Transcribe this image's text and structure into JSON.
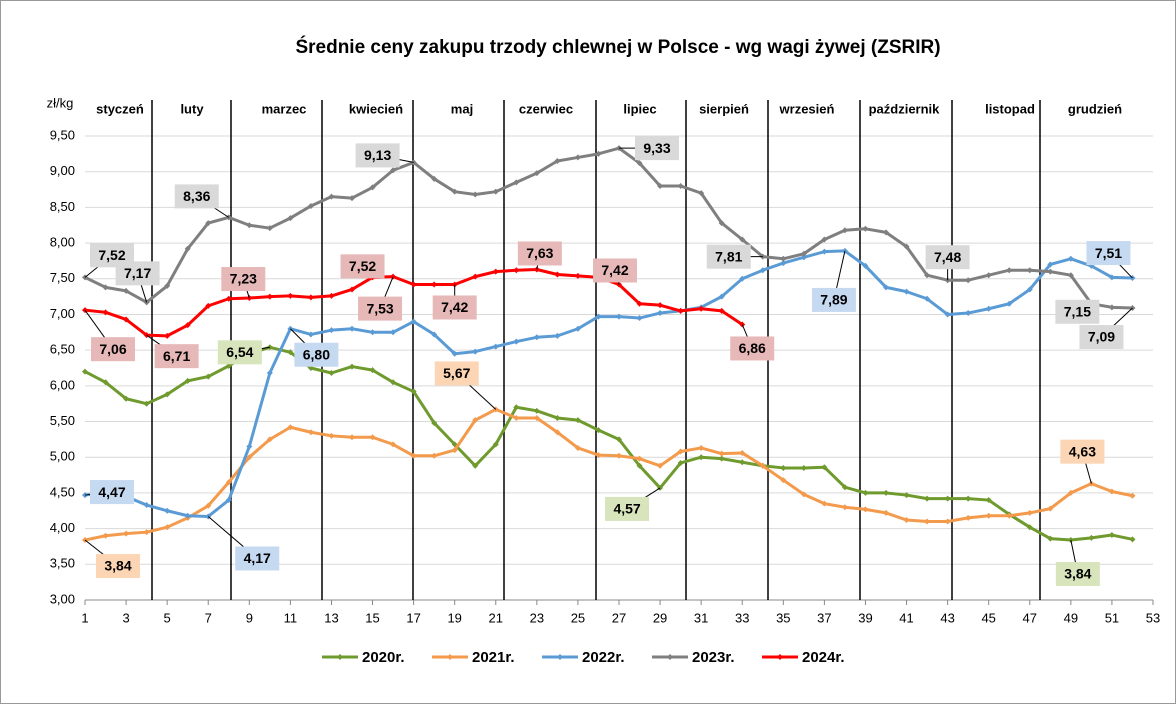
{
  "chart_data": {
    "type": "line",
    "title": "Średnie ceny zakupu trzody chlewnej w Polsce - wg wagi żywej (ZSRIR)",
    "y_label": "zł/kg",
    "months": [
      "styczeń",
      "luty",
      "marzec",
      "kwiecień",
      "maj",
      "czerwiec",
      "lipiec",
      "sierpień",
      "wrzesień",
      "październik",
      "listopad",
      "grudzień"
    ],
    "x": [
      1,
      2,
      3,
      4,
      5,
      6,
      7,
      8,
      9,
      10,
      11,
      12,
      13,
      14,
      15,
      16,
      17,
      18,
      19,
      20,
      21,
      22,
      23,
      24,
      25,
      26,
      27,
      28,
      29,
      30,
      31,
      32,
      33,
      34,
      35,
      36,
      37,
      38,
      39,
      40,
      41,
      42,
      43,
      44,
      45,
      46,
      47,
      48,
      49,
      50,
      51,
      52
    ],
    "xlim": [
      1,
      53
    ],
    "xticks": [
      1,
      3,
      5,
      7,
      9,
      11,
      13,
      15,
      17,
      19,
      21,
      23,
      25,
      27,
      29,
      31,
      33,
      35,
      37,
      39,
      41,
      43,
      45,
      47,
      49,
      51,
      53
    ],
    "ylim": [
      3,
      9.5
    ],
    "yticks": [
      {
        "value": 3,
        "label": "3,00"
      },
      {
        "value": 3.5,
        "label": "3,50"
      },
      {
        "value": 4,
        "label": "4,00"
      },
      {
        "value": 4.5,
        "label": "4,50"
      },
      {
        "value": 5,
        "label": "5,00"
      },
      {
        "value": 5.5,
        "label": "5,50"
      },
      {
        "value": 6,
        "label": "6,00"
      },
      {
        "value": 6.5,
        "label": "6,50"
      },
      {
        "value": 7,
        "label": "7,00"
      },
      {
        "value": 7.5,
        "label": "7,50"
      },
      {
        "value": 8,
        "label": "8,00"
      },
      {
        "value": 8.5,
        "label": "8,50"
      },
      {
        "value": 9,
        "label": "9,00"
      },
      {
        "value": 9.5,
        "label": "9,50"
      }
    ],
    "grid": true,
    "legend": "bottom",
    "series": [
      {
        "name": "2020r.",
        "color": "#6f9a2e",
        "label_fill": "#d8e4bc",
        "values": [
          6.2,
          6.05,
          5.82,
          5.75,
          5.88,
          6.07,
          6.13,
          6.28,
          6.45,
          6.54,
          6.47,
          6.25,
          6.18,
          6.27,
          6.22,
          6.05,
          5.92,
          5.48,
          5.18,
          4.88,
          5.18,
          5.7,
          5.65,
          5.55,
          5.52,
          5.38,
          5.25,
          4.88,
          4.57,
          4.92,
          5.0,
          4.98,
          4.93,
          4.88,
          4.85,
          4.85,
          4.86,
          4.58,
          4.5,
          4.5,
          4.47,
          4.42,
          4.42,
          4.42,
          4.4,
          4.2,
          4.02,
          3.86,
          3.84,
          3.87,
          3.91,
          3.85
        ],
        "value_labels": [
          null,
          null,
          null,
          null,
          null,
          null,
          null,
          null,
          null,
          "6,54",
          null,
          null,
          null,
          null,
          null,
          null,
          null,
          null,
          null,
          null,
          null,
          null,
          null,
          null,
          null,
          null,
          null,
          null,
          "4,57",
          null,
          null,
          null,
          null,
          null,
          null,
          null,
          null,
          null,
          null,
          null,
          null,
          null,
          null,
          null,
          null,
          null,
          null,
          null,
          "3,84",
          null,
          null,
          null
        ]
      },
      {
        "name": "2021r.",
        "color": "#f39a4c",
        "label_fill": "#fcd5b4",
        "values": [
          3.84,
          3.9,
          3.93,
          3.95,
          4.02,
          4.15,
          4.32,
          4.65,
          5.0,
          5.25,
          5.42,
          5.35,
          5.3,
          5.28,
          5.28,
          5.18,
          5.02,
          5.02,
          5.1,
          5.52,
          5.67,
          5.55,
          5.55,
          5.35,
          5.13,
          5.03,
          5.02,
          4.98,
          4.88,
          5.08,
          5.13,
          5.05,
          5.06,
          4.88,
          4.68,
          4.48,
          4.35,
          4.3,
          4.27,
          4.22,
          4.12,
          4.1,
          4.1,
          4.15,
          4.18,
          4.18,
          4.22,
          4.28,
          4.5,
          4.63,
          4.52,
          4.46
        ],
        "value_labels": [
          "3,84",
          null,
          null,
          null,
          null,
          null,
          null,
          null,
          null,
          null,
          null,
          null,
          null,
          null,
          null,
          null,
          null,
          null,
          null,
          null,
          "5,67",
          null,
          null,
          null,
          null,
          null,
          null,
          null,
          null,
          null,
          null,
          null,
          null,
          null,
          null,
          null,
          null,
          null,
          null,
          null,
          null,
          null,
          null,
          null,
          null,
          null,
          null,
          null,
          null,
          "4,63",
          null,
          null
        ]
      },
      {
        "name": "2022r.",
        "color": "#5b9bd5",
        "label_fill": "#c5d9f1",
        "values": [
          4.47,
          4.5,
          4.45,
          4.33,
          4.25,
          4.18,
          4.17,
          4.4,
          5.15,
          6.18,
          6.8,
          6.72,
          6.78,
          6.8,
          6.75,
          6.75,
          6.9,
          6.72,
          6.45,
          6.48,
          6.55,
          6.62,
          6.68,
          6.7,
          6.8,
          6.97,
          6.97,
          6.95,
          7.02,
          7.05,
          7.1,
          7.25,
          7.5,
          7.62,
          7.72,
          7.8,
          7.88,
          7.89,
          7.68,
          7.38,
          7.32,
          7.22,
          7.0,
          7.02,
          7.08,
          7.15,
          7.35,
          7.7,
          7.78,
          7.68,
          7.52,
          7.51
        ],
        "value_labels": [
          "4,47",
          null,
          null,
          null,
          null,
          null,
          "4,17",
          null,
          null,
          null,
          "6,80",
          null,
          null,
          null,
          null,
          null,
          null,
          null,
          null,
          null,
          null,
          null,
          null,
          null,
          null,
          null,
          null,
          null,
          null,
          null,
          null,
          null,
          null,
          null,
          null,
          null,
          null,
          "7,89",
          null,
          null,
          null,
          null,
          null,
          null,
          null,
          null,
          null,
          null,
          null,
          null,
          null,
          "7,51"
        ]
      },
      {
        "name": "2023r.",
        "color": "#7f7f7f",
        "label_fill": "#d9d9d9",
        "values": [
          7.52,
          7.38,
          7.33,
          7.17,
          7.4,
          7.92,
          8.28,
          8.36,
          8.25,
          8.21,
          8.35,
          8.52,
          8.65,
          8.63,
          8.78,
          9.02,
          9.13,
          8.9,
          8.72,
          8.68,
          8.72,
          8.85,
          8.98,
          9.15,
          9.2,
          9.25,
          9.33,
          9.12,
          8.8,
          8.8,
          8.7,
          8.28,
          8.05,
          7.81,
          7.78,
          7.85,
          8.05,
          8.18,
          8.2,
          8.15,
          7.95,
          7.55,
          7.48,
          7.48,
          7.55,
          7.62,
          7.62,
          7.6,
          7.55,
          7.15,
          7.1,
          7.09
        ],
        "value_labels": [
          "7,52",
          null,
          null,
          "7,17",
          null,
          null,
          null,
          "8,36",
          null,
          null,
          null,
          null,
          null,
          null,
          null,
          null,
          "9,13",
          null,
          null,
          null,
          null,
          null,
          null,
          null,
          null,
          null,
          "9,33",
          null,
          null,
          null,
          null,
          null,
          null,
          "7,81",
          null,
          null,
          null,
          null,
          null,
          null,
          null,
          null,
          "7,48",
          null,
          null,
          null,
          null,
          null,
          null,
          "7,15",
          null,
          "7,09"
        ]
      },
      {
        "name": "2024r.",
        "color": "#ff0000",
        "label_fill": "#e6b8b7",
        "values": [
          7.06,
          7.03,
          6.93,
          6.71,
          6.7,
          6.85,
          7.12,
          7.22,
          7.23,
          7.25,
          7.26,
          7.24,
          7.26,
          7.35,
          7.52,
          7.53,
          7.42,
          7.42,
          7.42,
          7.53,
          7.6,
          7.62,
          7.63,
          7.56,
          7.54,
          7.52,
          7.42,
          7.15,
          7.13,
          7.05,
          7.08,
          7.05,
          6.86,
          null,
          null,
          null,
          null,
          null,
          null,
          null,
          null,
          null,
          null,
          null,
          null,
          null,
          null,
          null,
          null,
          null,
          null,
          null
        ],
        "value_labels": [
          "7,06",
          null,
          null,
          "6,71",
          null,
          null,
          null,
          null,
          "7,23",
          null,
          null,
          null,
          null,
          null,
          "7,52",
          "7,53",
          null,
          null,
          "7,42",
          null,
          null,
          null,
          "7,63",
          null,
          null,
          null,
          "7,42",
          null,
          null,
          null,
          null,
          null,
          "6,86",
          null,
          null,
          null,
          null,
          null,
          null,
          null,
          null,
          null,
          null,
          null,
          null,
          null,
          null,
          null,
          null,
          null,
          null,
          null
        ]
      }
    ]
  }
}
